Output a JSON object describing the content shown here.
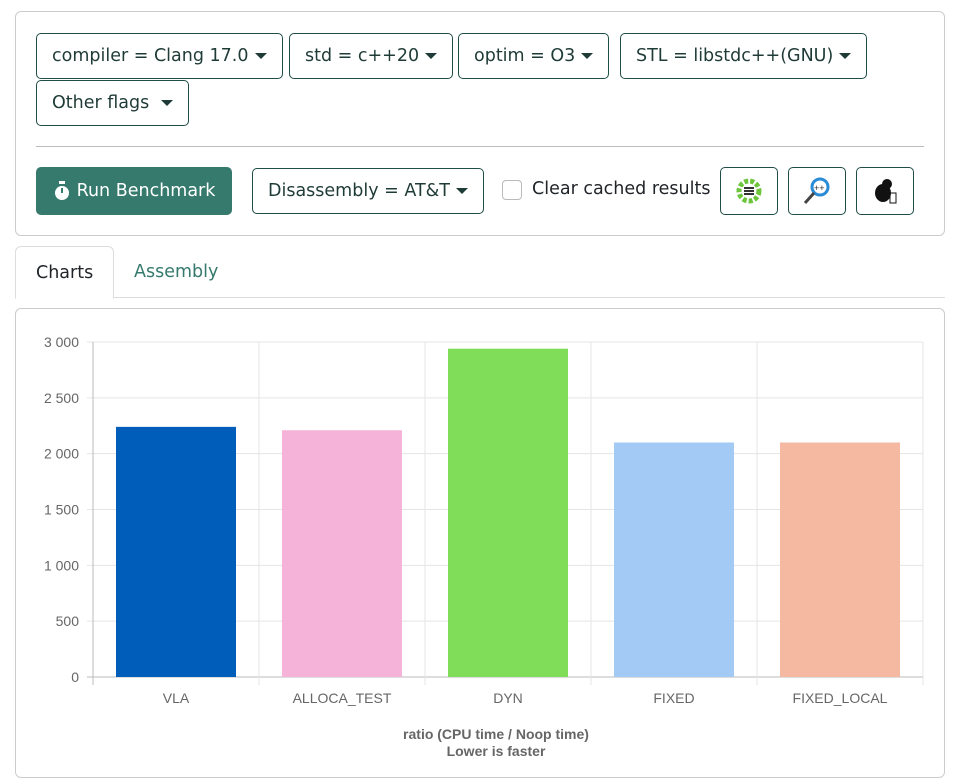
{
  "filters": {
    "compiler": "compiler = Clang 17.0",
    "std": "std = c++20",
    "optim": "optim = O3",
    "stl": "STL = libstdc++(GNU)",
    "other": "Other flags"
  },
  "toolbar": {
    "run_label": "Run Benchmark",
    "disassembly": "Disassembly = AT&T",
    "clear_cache_label": "Clear cached results",
    "clear_cache_checked": false,
    "icons": [
      "cppinsights-icon",
      "compiler-explorer-icon",
      "build-bench-icon"
    ]
  },
  "tabs": [
    {
      "label": "Charts",
      "active": true
    },
    {
      "label": "Assembly",
      "active": false
    }
  ],
  "colors": {
    "accent": "#357a6d",
    "border": "#1f4d46"
  },
  "chart_data": {
    "type": "bar",
    "categories": [
      "VLA",
      "ALLOCA_TEST",
      "DYN",
      "FIXED",
      "FIXED_LOCAL"
    ],
    "values": [
      2240,
      2210,
      2940,
      2100,
      2100
    ],
    "colors": [
      "#005dba",
      "#f5b3d9",
      "#7fdd5a",
      "#a2caf4",
      "#f5b8a0"
    ],
    "yticks": [
      "0",
      "500",
      "1 000",
      "1 500",
      "2 000",
      "2 500",
      "3 000"
    ],
    "ylim": [
      0,
      3000
    ],
    "xlabel": "ratio (CPU time / Noop time)",
    "subtitle": "Lower is faster",
    "grid": true
  }
}
